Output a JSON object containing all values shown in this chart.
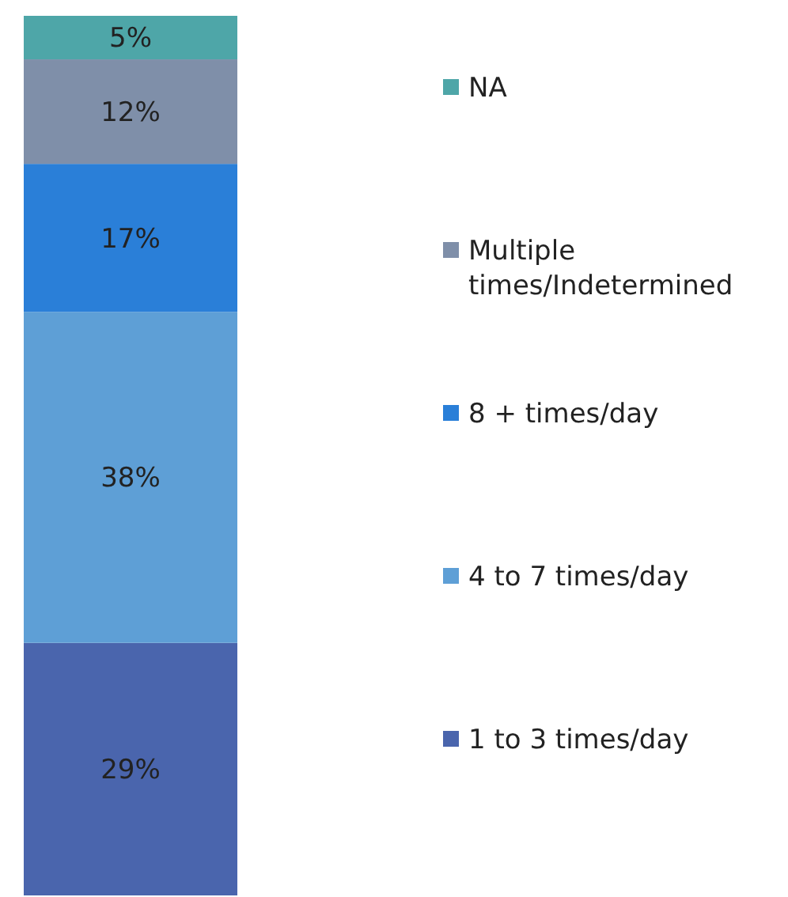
{
  "chart_data": {
    "type": "bar",
    "stacked": true,
    "categories": [
      null
    ],
    "legend": "right",
    "series": [
      {
        "name": "1 to 3 times/day",
        "color": "#4a65ad",
        "values": [
          29
        ],
        "value_labels": [
          "29%"
        ]
      },
      {
        "name": "4 to 7 times/day",
        "color": "#5e9fd6",
        "values": [
          38
        ],
        "value_labels": [
          "38%"
        ]
      },
      {
        "name": "8 + times/day",
        "color": "#2a7fd8",
        "values": [
          17
        ],
        "value_labels": [
          "17%"
        ]
      },
      {
        "name": "Multiple times/Indetermined",
        "color": "#7f8fa9",
        "values": [
          12
        ],
        "value_labels": [
          "12%"
        ]
      },
      {
        "name": "NA",
        "color": "#4ea6a8",
        "values": [
          5
        ],
        "value_labels": [
          "5%"
        ]
      }
    ]
  }
}
